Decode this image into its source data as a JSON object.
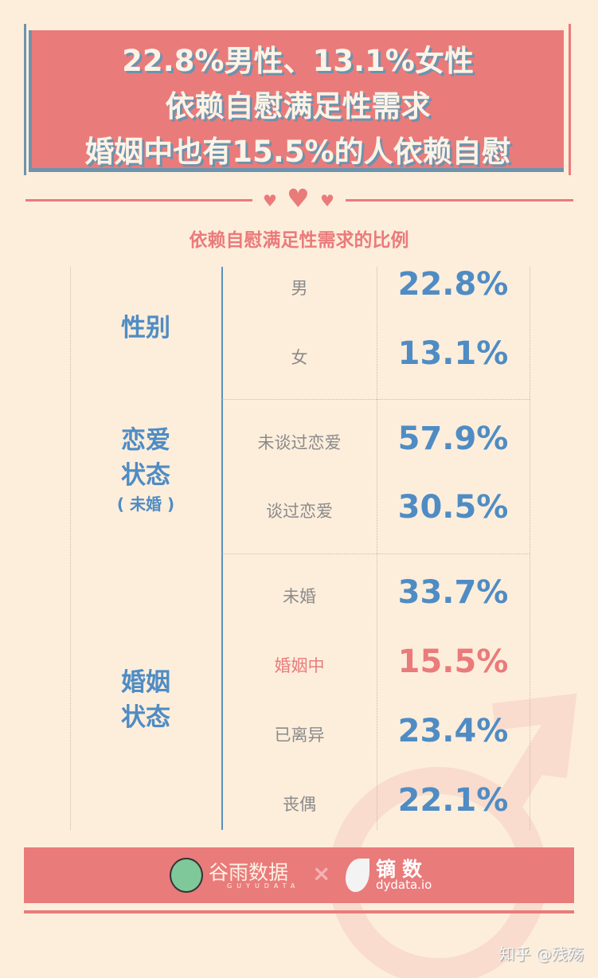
{
  "banner": {
    "line1": "22.8%男性、13.1%女性",
    "line2": "依赖自慰满足性需求",
    "line3": "婚姻中也有15.5%的人依赖自慰"
  },
  "subtitle": "依赖自慰满足性需求的比例",
  "colors": {
    "background": "#fdeedc",
    "pink": "#ea7b7b",
    "blue": "#4f8cc4",
    "gray": "#8a8a8a"
  },
  "chart_data": {
    "type": "table",
    "title": "依赖自慰满足性需求的比例",
    "groups": [
      {
        "label_lines": [
          "性别"
        ],
        "note": "",
        "rows": [
          {
            "category": "男",
            "value": "22.8%"
          },
          {
            "category": "女",
            "value": "13.1%"
          }
        ]
      },
      {
        "label_lines": [
          "恋爱",
          "状态"
        ],
        "note": "( 未婚 )",
        "rows": [
          {
            "category": "未谈过恋爱",
            "value": "57.9%"
          },
          {
            "category": "谈过恋爱",
            "value": "30.5%"
          }
        ]
      },
      {
        "label_lines": [
          "婚姻",
          "状态"
        ],
        "note": "",
        "rows": [
          {
            "category": "未婚",
            "value": "33.7%"
          },
          {
            "category": "婚姻中",
            "value": "15.5%",
            "highlight": true
          },
          {
            "category": "已离异",
            "value": "23.4%"
          },
          {
            "category": "丧偶",
            "value": "22.1%"
          }
        ]
      }
    ]
  },
  "footer": {
    "brand1": "谷雨数据",
    "brand1_sub": "GUYUDATA",
    "times": "×",
    "brand2": "镝数",
    "brand2_sub": "dydata.io"
  },
  "credit": "知乎 @残殇"
}
